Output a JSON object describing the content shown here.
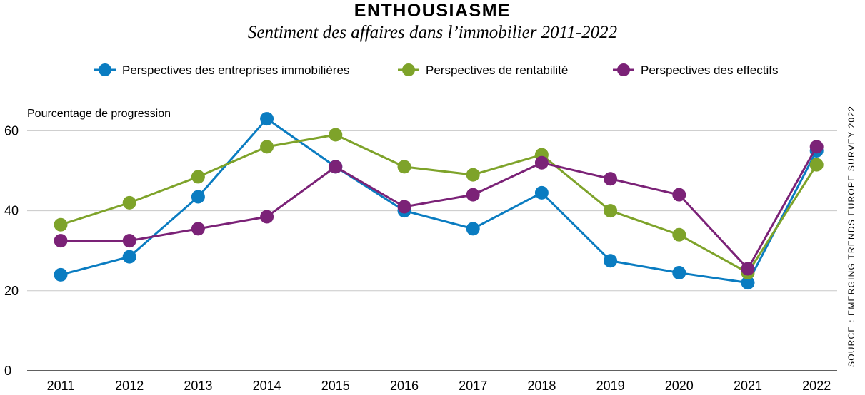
{
  "chart_data": {
    "type": "line",
    "title": "ENTHOUSIASME",
    "subtitle": "Sentiment des affaires dans l’immobilier 2011-2022",
    "ylabel": "Pourcentage de progression",
    "xlabel": "",
    "source": "SOURCE : EMERGING TRENDS EUROPE SURVEY 2022",
    "ylim": [
      0,
      65
    ],
    "yticks": [
      0,
      20,
      40,
      60
    ],
    "grid": true,
    "legend_position": "top",
    "categories": [
      "2011",
      "2012",
      "2013",
      "2014",
      "2015",
      "2016",
      "2017",
      "2018",
      "2019",
      "2020",
      "2021",
      "2022"
    ],
    "series": [
      {
        "name": "Perspectives des entreprises immobilières",
        "color": "#0a7cc1",
        "values": [
          24,
          28.5,
          43.5,
          63,
          51,
          40,
          35.5,
          44.5,
          27.5,
          24.5,
          22,
          55
        ]
      },
      {
        "name": "Perspectives de rentabilité",
        "color": "#7ea32a",
        "values": [
          36.5,
          42,
          48.5,
          56,
          59,
          51,
          49,
          54,
          40,
          34,
          24.5,
          51.5
        ]
      },
      {
        "name": "Perspectives des effectifs",
        "color": "#7b2277",
        "values": [
          32.5,
          32.5,
          35.5,
          38.5,
          51,
          41,
          44,
          52,
          48,
          44,
          25.5,
          56
        ]
      }
    ]
  }
}
